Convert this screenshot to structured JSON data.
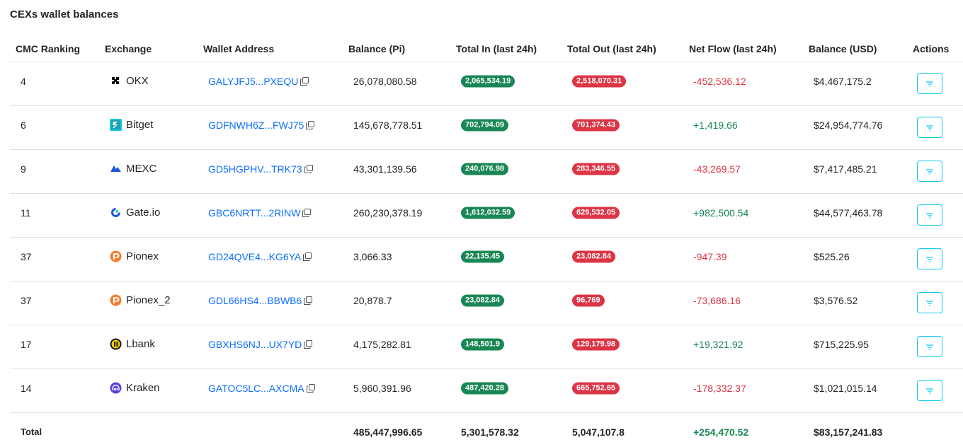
{
  "title": "CEXs wallet balances",
  "table": {
    "columns": [
      "CMC Ranking",
      "Exchange",
      "Wallet Address",
      "Balance (Pi)",
      "Total In (last 24h)",
      "Total Out (last 24h)",
      "Net Flow (last 24h)",
      "Balance (USD)",
      "Actions"
    ],
    "rows": [
      {
        "rank": "4",
        "exchange": "OKX",
        "wallet": "GALYJFJ5...PXEQU",
        "balance_pi": "26,078,080.58",
        "total_in": "2,065,534.19",
        "total_out": "2,518,070.31",
        "net_flow": "-452,536.12",
        "balance_usd": "$4,467,175.2"
      },
      {
        "rank": "6",
        "exchange": "Bitget",
        "wallet": "GDFNWH6Z...FWJ75",
        "balance_pi": "145,678,778.51",
        "total_in": "702,794.09",
        "total_out": "701,374.43",
        "net_flow": "+1,419.66",
        "balance_usd": "$24,954,774.76"
      },
      {
        "rank": "9",
        "exchange": "MEXC",
        "wallet": "GD5HGPHV...TRK73",
        "balance_pi": "43,301,139.56",
        "total_in": "240,076.98",
        "total_out": "283,346.55",
        "net_flow": "-43,269.57",
        "balance_usd": "$7,417,485.21"
      },
      {
        "rank": "11",
        "exchange": "Gate.io",
        "wallet": "GBC6NRTT...2RINW",
        "balance_pi": "260,230,378.19",
        "total_in": "1,612,032.59",
        "total_out": "629,532.05",
        "net_flow": "+982,500.54",
        "balance_usd": "$44,577,463.78"
      },
      {
        "rank": "37",
        "exchange": "Pionex",
        "wallet": "GD24QVE4...KG6YA",
        "balance_pi": "3,066.33",
        "total_in": "22,135.45",
        "total_out": "23,082.84",
        "net_flow": "-947.39",
        "balance_usd": "$525.26"
      },
      {
        "rank": "37",
        "exchange": "Pionex_2",
        "wallet": "GDL66HS4...BBWB6",
        "balance_pi": "20,878.7",
        "total_in": "23,082.84",
        "total_out": "96,769",
        "net_flow": "-73,686.16",
        "balance_usd": "$3,576.52"
      },
      {
        "rank": "17",
        "exchange": "Lbank",
        "wallet": "GBXHS6NJ...UX7YD",
        "balance_pi": "4,175,282.81",
        "total_in": "148,501.9",
        "total_out": "129,179.98",
        "net_flow": "+19,321.92",
        "balance_usd": "$715,225.95"
      },
      {
        "rank": "14",
        "exchange": "Kraken",
        "wallet": "GATOC5LC...AXCMA",
        "balance_pi": "5,960,391.96",
        "total_in": "487,420.28",
        "total_out": "665,752.65",
        "net_flow": "-178,332.37",
        "balance_usd": "$1,021,015.14"
      }
    ],
    "total": {
      "label": "Total",
      "balance_pi": "485,447,996.65",
      "total_in": "5,301,578.32",
      "total_out": "5,047,107.8",
      "net_flow": "+254,470.52",
      "balance_usd": "$83,157,241.83"
    }
  }
}
